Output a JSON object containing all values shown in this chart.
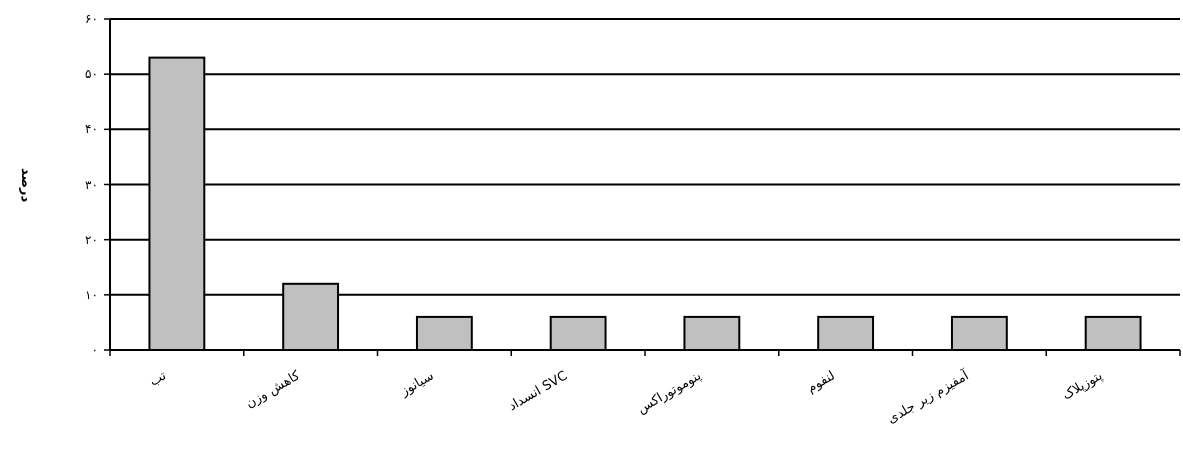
{
  "chart_data": {
    "type": "bar",
    "ylabel": "درصد",
    "categories": [
      "تب",
      "کاهش وزن",
      "سیانوز",
      "انسداد SVC",
      "پنوموتوراکس",
      "لنفوم",
      "آمفیزم زیر جلدی",
      "پتوزپلاک"
    ],
    "values": [
      53,
      12,
      6,
      6,
      6,
      6,
      6,
      6
    ],
    "color": "#c0c0c0",
    "ylim": [
      0,
      60
    ],
    "yticks": [
      {
        "value": 0,
        "label": "۰"
      },
      {
        "value": 10,
        "label": "۱۰"
      },
      {
        "value": 20,
        "label": "۲۰"
      },
      {
        "value": 30,
        "label": "۳۰"
      },
      {
        "value": 40,
        "label": "۴۰"
      },
      {
        "value": 50,
        "label": "۵۰"
      },
      {
        "value": 60,
        "label": "۶۰"
      }
    ],
    "grid": "y"
  }
}
